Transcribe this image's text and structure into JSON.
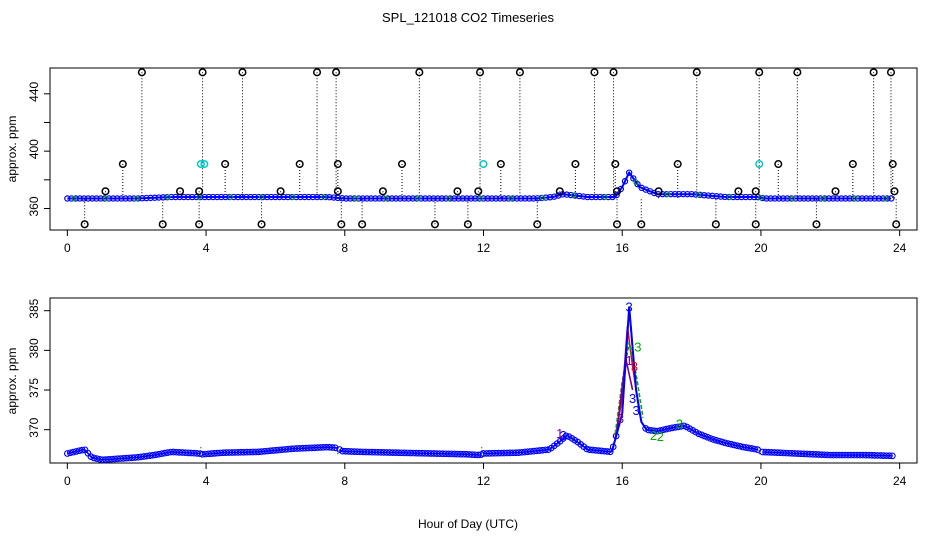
{
  "figure": {
    "title": "SPL_121018  CO2 Timeseries",
    "xlabel": "Hour of Day (UTC)"
  },
  "chart_data": [
    {
      "type": "scatter",
      "panel": "top",
      "ylabel": "approx. ppm",
      "xlim": [
        -0.5,
        24.5
      ],
      "ylim": [
        345,
        458
      ],
      "xticks": [
        0,
        4,
        8,
        12,
        16,
        20,
        24
      ],
      "yticks": [
        360,
        400,
        440
      ],
      "yminor": [
        380,
        420
      ],
      "colors": {
        "base": "#0000ff",
        "points": "#000000",
        "cyan": "#00c8c8",
        "red": "#ff0000",
        "green": "#00aa00"
      },
      "series": [
        {
          "name": "baseline",
          "x": [
            0.0,
            0.5,
            1.0,
            2.0,
            3.0,
            3.8,
            4.5,
            6.0,
            7.5,
            8.0,
            10.0,
            11.9,
            12.1,
            13.5,
            14.0,
            14.3,
            15.0,
            15.8,
            16.0,
            16.2,
            16.5,
            17.0,
            18.0,
            19.0,
            19.9,
            20.1,
            21.0,
            22.0,
            23.0,
            23.8
          ],
          "y": [
            367,
            367,
            367,
            367,
            368,
            368,
            368,
            368,
            368,
            367,
            367,
            367,
            367,
            367,
            368,
            370,
            368,
            368,
            375,
            385,
            375,
            370,
            370,
            368,
            368,
            367,
            367,
            367,
            367,
            367
          ]
        },
        {
          "name": "high_spikes",
          "x": [
            2.15,
            3.9,
            5.05,
            7.2,
            7.75,
            10.15,
            11.9,
            13.05,
            15.2,
            15.75,
            18.15,
            19.95,
            21.05,
            23.25,
            23.75
          ],
          "y": [
            455,
            455,
            455,
            455,
            455,
            455,
            455,
            455,
            455,
            455,
            455,
            455,
            455,
            455,
            455
          ]
        },
        {
          "name": "mid_spikes",
          "x": [
            1.6,
            4.55,
            6.7,
            7.8,
            9.65,
            12.5,
            14.65,
            15.8,
            17.6,
            20.5,
            22.65,
            23.8
          ],
          "y": [
            391,
            391,
            391,
            391,
            391,
            391,
            391,
            391,
            391,
            391,
            391,
            391
          ]
        },
        {
          "name": "low_outliers",
          "x": [
            0.5,
            2.75,
            3.8,
            5.6,
            7.9,
            8.5,
            10.6,
            11.55,
            13.55,
            15.85,
            16.55,
            18.7,
            19.85,
            21.6,
            23.9
          ],
          "y": [
            349,
            349,
            349,
            349,
            349,
            349,
            349,
            349,
            349,
            349,
            349,
            349,
            349,
            349,
            349
          ]
        },
        {
          "name": "small_spikes",
          "x": [
            1.1,
            3.25,
            3.8,
            6.15,
            7.8,
            9.1,
            11.25,
            11.85,
            14.2,
            15.85,
            17.05,
            19.35,
            19.85,
            22.15,
            23.85
          ],
          "y": [
            372,
            372,
            372,
            372,
            372,
            372,
            372,
            372,
            372,
            372,
            372,
            372,
            372,
            372,
            372
          ]
        },
        {
          "name": "cyan_points",
          "x": [
            3.95,
            12.0,
            19.95,
            3.85
          ],
          "y": [
            391,
            391,
            391,
            391
          ]
        }
      ]
    },
    {
      "type": "scatter",
      "panel": "bottom",
      "ylabel": "approx. ppm",
      "xlim": [
        -0.5,
        24.5
      ],
      "ylim": [
        365.8,
        386.6
      ],
      "xticks": [
        0,
        4,
        8,
        12,
        16,
        20,
        24
      ],
      "yticks": [
        370,
        375,
        380,
        385
      ],
      "gap_lines": [
        3.85,
        7.8,
        11.95,
        19.95
      ],
      "series": [
        {
          "name": "blue",
          "x": [
            0.0,
            0.3,
            0.5,
            0.7,
            1.0,
            2.0,
            2.5,
            3.0,
            3.8,
            3.9,
            4.5,
            5.5,
            6.5,
            7.5,
            7.8,
            7.9,
            8.5,
            9.5,
            10.5,
            11.5,
            11.9,
            12.0,
            13.0,
            13.9,
            14.2,
            14.4,
            14.7,
            15.0,
            15.7,
            16.0,
            16.2,
            16.4,
            16.55,
            16.7,
            17.0,
            17.4,
            17.8,
            18.2,
            18.6,
            19.0,
            19.5,
            19.9,
            20.0,
            21.0,
            22.0,
            23.0,
            23.8
          ],
          "y": [
            367.0,
            367.3,
            367.5,
            366.5,
            366.2,
            366.5,
            366.8,
            367.2,
            367.0,
            366.9,
            367.1,
            367.2,
            367.6,
            367.8,
            367.7,
            367.3,
            367.2,
            367.1,
            367.0,
            366.9,
            366.8,
            367.0,
            367.1,
            367.5,
            368.5,
            369.3,
            368.5,
            367.5,
            367.2,
            372.0,
            385.5,
            375.0,
            371.0,
            370.0,
            369.8,
            370.2,
            370.5,
            369.5,
            368.8,
            368.3,
            367.8,
            367.5,
            367.2,
            367.0,
            366.8,
            366.8,
            366.7
          ]
        },
        {
          "name": "red",
          "x": [
            15.8,
            16.0,
            16.15,
            16.3,
            16.5
          ],
          "y": [
            369.0,
            374.0,
            383.0,
            378.0,
            372.0
          ]
        },
        {
          "name": "green",
          "x": [
            15.8,
            16.0,
            16.2,
            16.4,
            16.6
          ],
          "y": [
            369.5,
            376.0,
            381.0,
            377.0,
            371.5
          ]
        },
        {
          "name": "purple",
          "x": [
            15.85,
            16.1,
            16.3
          ],
          "y": [
            370.0,
            379.0,
            375.0
          ]
        }
      ],
      "digit_labels": [
        {
          "text": "3",
          "x": 16.2,
          "y": 385.5,
          "color": "#0000ff"
        },
        {
          "text": "3",
          "x": 16.35,
          "y": 378.0,
          "color": "#ff0000"
        },
        {
          "text": "1",
          "x": 16.2,
          "y": 378.8,
          "color": "#800080"
        },
        {
          "text": "3",
          "x": 16.45,
          "y": 380.5,
          "color": "#00aa00"
        },
        {
          "text": "3",
          "x": 16.3,
          "y": 374.0,
          "color": "#0000ff"
        },
        {
          "text": "3",
          "x": 15.95,
          "y": 371.5,
          "color": "#800080"
        },
        {
          "text": "3",
          "x": 16.4,
          "y": 372.5,
          "color": "#0000ff"
        },
        {
          "text": "2",
          "x": 16.9,
          "y": 369.3,
          "color": "#00aa00"
        },
        {
          "text": "3",
          "x": 17.65,
          "y": 370.8,
          "color": "#00aa00"
        },
        {
          "text": "2",
          "x": 17.1,
          "y": 369.2,
          "color": "#00aa00"
        },
        {
          "text": "3",
          "x": 14.3,
          "y": 369.3,
          "color": "#0000ff"
        },
        {
          "text": "1",
          "x": 14.2,
          "y": 369.6,
          "color": "#800080"
        }
      ]
    }
  ]
}
